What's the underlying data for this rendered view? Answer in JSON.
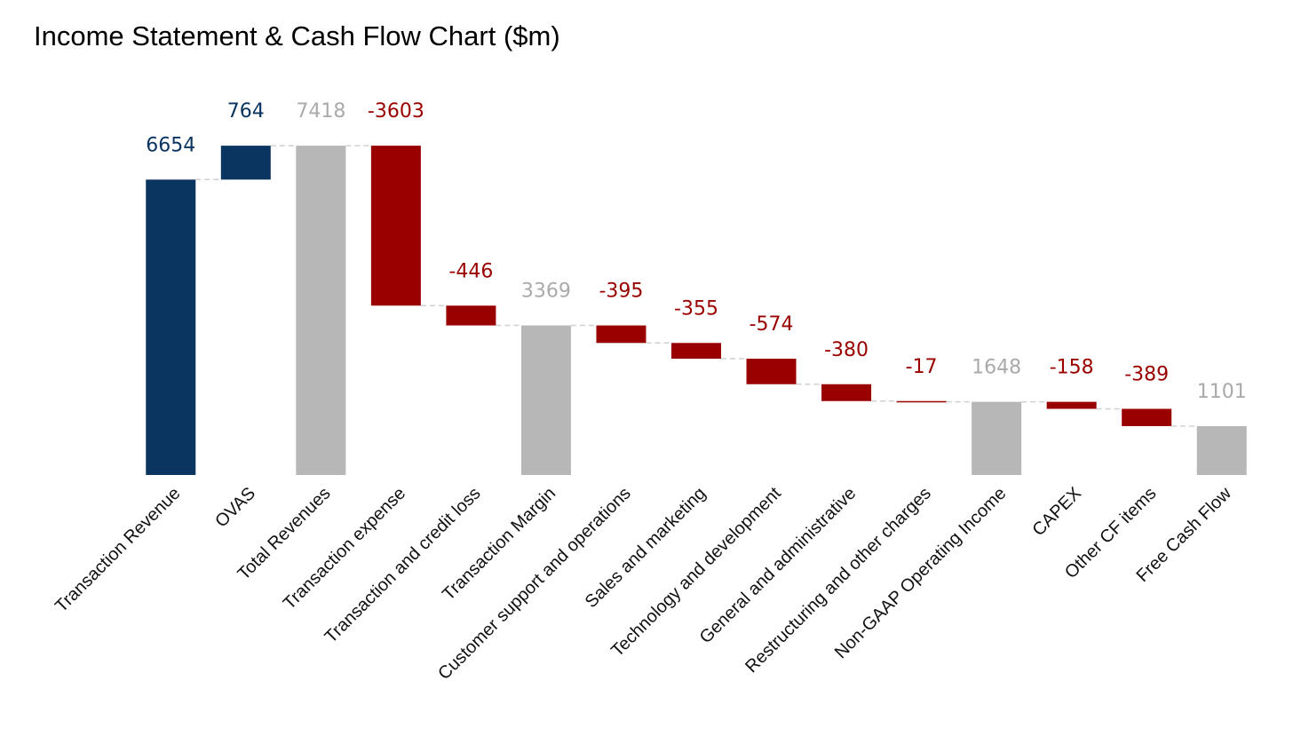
{
  "chart_data": {
    "type": "waterfall",
    "title": "Income Statement & Cash Flow Chart ($m)",
    "categories": [
      "Transaction Revenue",
      "OVAS",
      "Total Revenues",
      "Transaction expense",
      "Transaction and credit loss",
      "Transaction Margin",
      "Customer support and operations",
      "Sales and marketing",
      "Technology and development",
      "General and administrative",
      "Restructuring and other charges",
      "Non-GAAP Operating Income",
      "CAPEX",
      "Other CF items",
      "Free Cash Flow"
    ],
    "values": [
      6654,
      764,
      7418,
      -3603,
      -446,
      3369,
      -395,
      -355,
      -574,
      -380,
      -17,
      1648,
      -158,
      -389,
      1101
    ],
    "measure": [
      "relative",
      "relative",
      "total",
      "relative",
      "relative",
      "total",
      "relative",
      "relative",
      "relative",
      "relative",
      "relative",
      "total",
      "relative",
      "relative",
      "total"
    ],
    "increase_color": "#0b3561",
    "decrease_color": "#990000",
    "total_color": "#b7b7b7",
    "ylim": [
      0,
      8000
    ]
  }
}
